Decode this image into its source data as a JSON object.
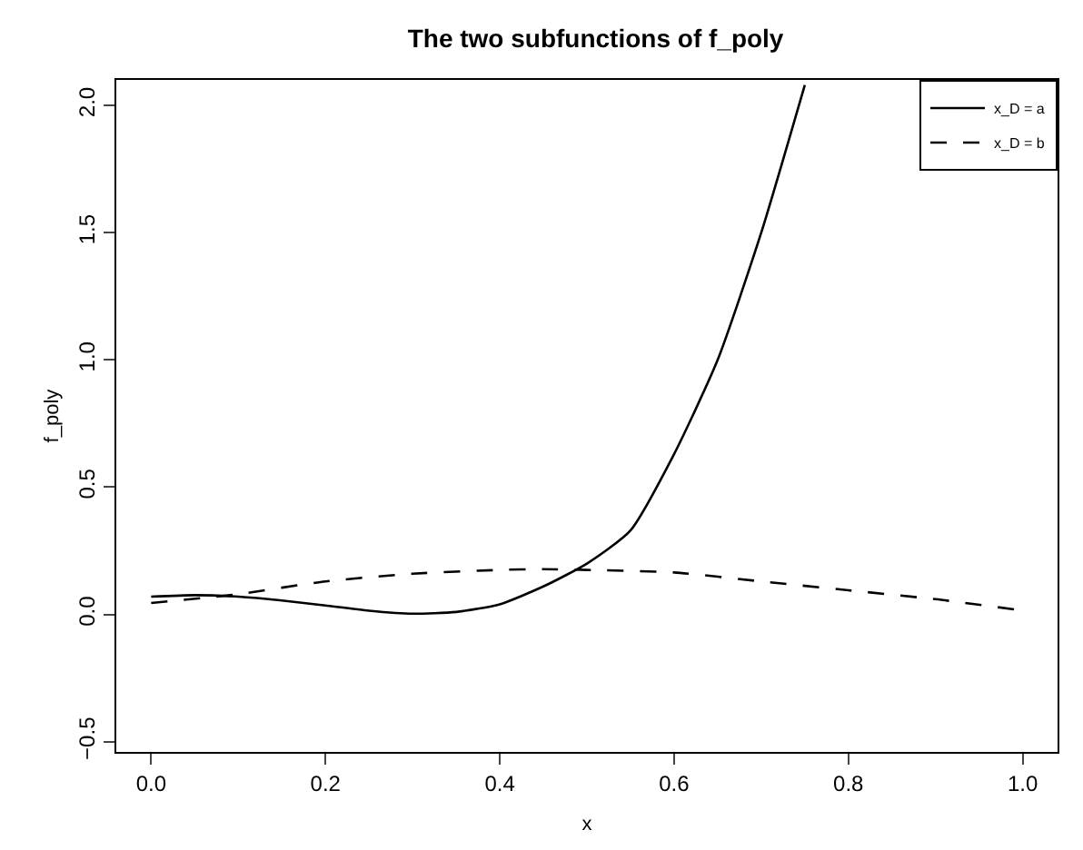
{
  "chart_data": {
    "type": "line",
    "title": "The two subfunctions of f_poly",
    "xlabel": "x",
    "ylabel": "f_poly",
    "xlim": [
      -0.04,
      1.04
    ],
    "ylim": [
      -0.54,
      2.1
    ],
    "xticks": [
      {
        "value": 0,
        "label": "0.0"
      },
      {
        "value": 0.2,
        "label": "0.2"
      },
      {
        "value": 0.4,
        "label": "0.4"
      },
      {
        "value": 0.6,
        "label": "0.6"
      },
      {
        "value": 0.8,
        "label": "0.8"
      },
      {
        "value": 1,
        "label": "1.0"
      }
    ],
    "yticks": [
      {
        "value": -0.5,
        "label": "−0.5"
      },
      {
        "value": 0,
        "label": "0.0"
      },
      {
        "value": 0.5,
        "label": "0.5"
      },
      {
        "value": 1,
        "label": "1.0"
      },
      {
        "value": 1.5,
        "label": "1.5"
      },
      {
        "value": 2,
        "label": "2.0"
      }
    ],
    "grid": false,
    "legend": "top right",
    "marker": "none",
    "series": [
      {
        "name": "x_D = a",
        "color": "#000000",
        "line_style": "solid",
        "x": [
          0,
          0.05,
          0.1,
          0.15,
          0.2,
          0.25,
          0.3,
          0.35,
          0.4,
          0.45,
          0.5,
          0.55,
          0.6,
          0.65,
          0.7,
          0.75
        ],
        "values": [
          0.07,
          0.076,
          0.07,
          0.055,
          0.035,
          0.015,
          0.003,
          0.01,
          0.04,
          0.11,
          0.2,
          0.33,
          0.63,
          1.0,
          1.5,
          2.08
        ]
      },
      {
        "name": "x_D = b",
        "color": "#000000",
        "line_style": "dashed",
        "x": [
          0,
          0.1,
          0.2,
          0.3,
          0.4,
          0.45,
          0.5,
          0.6,
          0.7,
          0.8,
          0.9,
          0.99
        ],
        "values": [
          0.045,
          0.08,
          0.13,
          0.16,
          0.175,
          0.178,
          0.175,
          0.165,
          0.13,
          0.095,
          0.06,
          0.02
        ]
      }
    ]
  }
}
